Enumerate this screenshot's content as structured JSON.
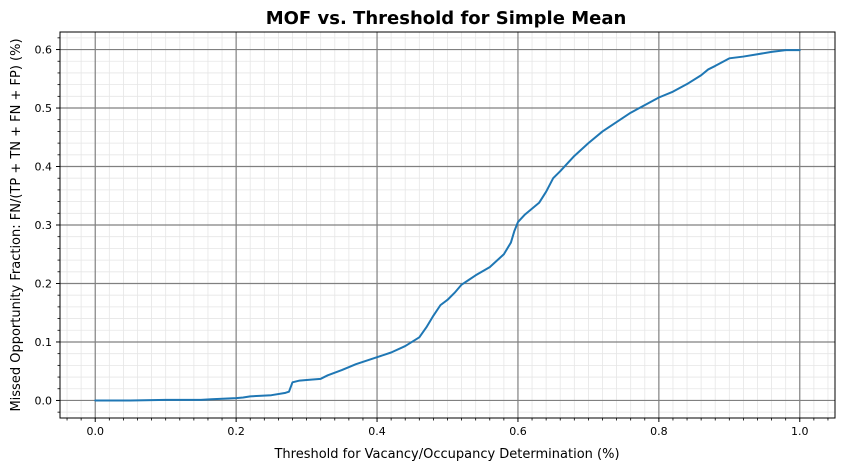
{
  "chart_data": {
    "type": "line",
    "title": "MOF vs. Threshold for Simple Mean",
    "xlabel": "Threshold for Vacancy/Occupancy Determination (%)",
    "ylabel": "Missed Opportunity Fraction: FN/(TP + TN + FN + FP) (%)",
    "xlim": [
      -0.05,
      1.05
    ],
    "ylim": [
      -0.03,
      0.63
    ],
    "xticks": [
      0.0,
      0.2,
      0.4,
      0.6,
      0.8,
      1.0
    ],
    "xtick_labels": [
      "0.0",
      "0.2",
      "0.4",
      "0.6",
      "0.8",
      "1.0"
    ],
    "yticks": [
      0.0,
      0.1,
      0.2,
      0.3,
      0.4,
      0.5,
      0.6
    ],
    "ytick_labels": [
      "0.0",
      "0.1",
      "0.2",
      "0.3",
      "0.4",
      "0.5",
      "0.6"
    ],
    "grid": true,
    "minor_grid": true,
    "line_color": "#1f77b4",
    "major_grid_color": "#808080",
    "minor_grid_color": "#e6e6e6",
    "x": [
      0.0,
      0.05,
      0.1,
      0.15,
      0.165,
      0.2,
      0.21,
      0.22,
      0.25,
      0.27,
      0.275,
      0.28,
      0.29,
      0.3,
      0.32,
      0.33,
      0.35,
      0.37,
      0.4,
      0.42,
      0.44,
      0.46,
      0.47,
      0.48,
      0.49,
      0.5,
      0.51,
      0.52,
      0.53,
      0.54,
      0.56,
      0.58,
      0.59,
      0.595,
      0.6,
      0.61,
      0.62,
      0.63,
      0.64,
      0.65,
      0.66,
      0.67,
      0.68,
      0.7,
      0.72,
      0.74,
      0.76,
      0.78,
      0.8,
      0.82,
      0.84,
      0.86,
      0.87,
      0.88,
      0.9,
      0.92,
      0.94,
      0.96,
      0.98,
      1.0
    ],
    "y": [
      0.0,
      0.0,
      0.001,
      0.001,
      0.002,
      0.004,
      0.005,
      0.007,
      0.009,
      0.013,
      0.015,
      0.031,
      0.034,
      0.035,
      0.037,
      0.043,
      0.052,
      0.062,
      0.074,
      0.082,
      0.093,
      0.108,
      0.125,
      0.145,
      0.163,
      0.172,
      0.184,
      0.198,
      0.206,
      0.214,
      0.228,
      0.25,
      0.27,
      0.29,
      0.305,
      0.318,
      0.328,
      0.338,
      0.357,
      0.38,
      0.392,
      0.405,
      0.418,
      0.44,
      0.46,
      0.476,
      0.492,
      0.505,
      0.518,
      0.528,
      0.541,
      0.556,
      0.566,
      0.572,
      0.585,
      0.588,
      0.592,
      0.596,
      0.599,
      0.599
    ]
  }
}
